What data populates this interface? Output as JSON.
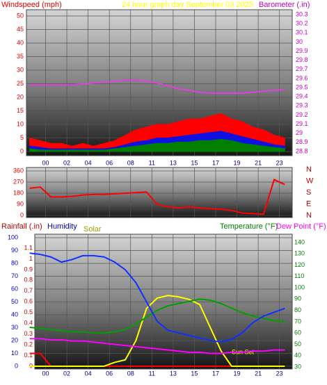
{
  "chart_data": [
    {
      "type": "area",
      "title": "24 hour graph day   September 03 2025",
      "xlim": [
        -1.8,
        23.2
      ],
      "xticks": [
        {
          "value": 0,
          "label": "00"
        },
        {
          "value": 2,
          "label": "02"
        },
        {
          "value": 4,
          "label": "04"
        },
        {
          "value": 6,
          "label": "06"
        },
        {
          "value": 8,
          "label": "08"
        },
        {
          "value": 10,
          "label": "11"
        },
        {
          "value": 12,
          "label": "13"
        },
        {
          "value": 14,
          "label": "15"
        },
        {
          "value": 16,
          "label": "17"
        },
        {
          "value": 18,
          "label": "19"
        },
        {
          "value": 20,
          "label": "21"
        },
        {
          "value": 22,
          "label": "23"
        }
      ],
      "grid": true,
      "axes": [
        {
          "label": "Windspeed (mph)",
          "side": "left",
          "color": "#e00000",
          "lim": [
            0,
            50
          ],
          "ticks": [
            0,
            5,
            10,
            15,
            20,
            25,
            30,
            35,
            40,
            45,
            50
          ]
        },
        {
          "label": "Barometer (.in)",
          "side": "right",
          "color": "#c000c0",
          "lim": [
            28.8,
            30.3
          ],
          "ticks": [
            28.8,
            28.9,
            29,
            29.1,
            29.2,
            29.3,
            29.4,
            29.5,
            29.6,
            29.7,
            29.8,
            29.9,
            30,
            30.1,
            30.2,
            30.3
          ]
        }
      ],
      "x": [
        -1.5,
        -0.5,
        0.5,
        1.5,
        2.5,
        3.5,
        4.5,
        5.5,
        6.5,
        7.5,
        8.5,
        9.5,
        10.5,
        11.5,
        12.5,
        13.5,
        14.5,
        15.5,
        16.5,
        17.5,
        18.5,
        19.5,
        20.5,
        21.5,
        22.5
      ],
      "series": [
        {
          "type": "area",
          "axis": 0,
          "color": "#ff0000",
          "values": [
            5,
            4,
            3,
            3,
            2,
            3,
            2,
            3,
            4,
            6,
            8,
            9,
            10,
            10,
            11,
            12,
            12,
            13,
            14,
            12,
            11,
            9,
            8,
            6,
            5
          ]
        },
        {
          "type": "area",
          "axis": 0,
          "color": "#1010e0",
          "values": [
            2,
            1.5,
            1,
            1,
            1,
            1,
            1,
            1,
            1.5,
            2.5,
            3.5,
            4,
            5,
            5,
            5.5,
            6,
            6.5,
            7,
            7.5,
            6.5,
            5.5,
            4.5,
            3.5,
            2.5,
            2
          ]
        },
        {
          "type": "area",
          "axis": 0,
          "color": "#008000",
          "values": [
            1,
            0.5,
            0.5,
            0.5,
            0.5,
            0.5,
            0.5,
            0.5,
            1,
            1.5,
            2,
            2.5,
            3,
            3,
            3.5,
            3.5,
            4,
            4,
            4.5,
            4,
            3,
            2.5,
            2,
            1.5,
            1
          ]
        },
        {
          "type": "line",
          "axis": 1,
          "color": "#e040e0",
          "values": [
            29.53,
            29.53,
            29.53,
            29.53,
            29.53,
            29.54,
            29.55,
            29.56,
            29.57,
            29.58,
            29.58,
            29.57,
            29.55,
            29.52,
            29.49,
            29.47,
            29.45,
            29.44,
            29.44,
            29.44,
            29.44,
            29.45,
            29.46,
            29.47,
            29.48
          ]
        }
      ]
    },
    {
      "type": "line",
      "xlim": [
        -1.8,
        23.2
      ],
      "xticks_grid": [
        0,
        2,
        4,
        6,
        8,
        10,
        12,
        14,
        16,
        18,
        20,
        22
      ],
      "grid": true,
      "axes": [
        {
          "side": "left",
          "color": "#e00000",
          "lim": [
            0,
            360
          ],
          "ticks": [
            0,
            90,
            180,
            270,
            360
          ]
        },
        {
          "side": "right",
          "color": "#c00000",
          "lim": [
            0,
            360
          ],
          "ticks": [
            {
              "value": 0,
              "label": "N"
            },
            {
              "value": 90,
              "label": "E"
            },
            {
              "value": 180,
              "label": "S"
            },
            {
              "value": 270,
              "label": "W"
            },
            {
              "value": 360,
              "label": "N"
            }
          ]
        }
      ],
      "x": [
        -1.5,
        -0.5,
        0.5,
        1.5,
        2.5,
        3.5,
        4.5,
        5.5,
        6.5,
        7.5,
        8.5,
        9.5,
        10.5,
        11.5,
        12.5,
        13.5,
        14.5,
        15.5,
        16.5,
        17.5,
        18.5,
        19.5,
        20.5,
        21.5,
        22.5
      ],
      "series": [
        {
          "type": "line",
          "axis": 0,
          "color": "#ff0000",
          "values": [
            220,
            230,
            150,
            150,
            155,
            165,
            170,
            170,
            175,
            180,
            185,
            190,
            90,
            70,
            60,
            70,
            60,
            55,
            50,
            40,
            20,
            15,
            10,
            290,
            250
          ]
        }
      ]
    },
    {
      "type": "line",
      "xlim": [
        -1.8,
        23.2
      ],
      "xticks": [
        {
          "value": 0,
          "label": "00"
        },
        {
          "value": 2,
          "label": "02"
        },
        {
          "value": 4,
          "label": "04"
        },
        {
          "value": 6,
          "label": "06"
        },
        {
          "value": 8,
          "label": "08"
        },
        {
          "value": 10,
          "label": "11"
        },
        {
          "value": 12,
          "label": "13"
        },
        {
          "value": 14,
          "label": "15"
        },
        {
          "value": 16,
          "label": "17"
        },
        {
          "value": 18,
          "label": "19"
        },
        {
          "value": 20,
          "label": "21"
        },
        {
          "value": 22,
          "label": "23"
        }
      ],
      "grid": true,
      "axes": [
        {
          "label": "Humidity",
          "side": "left",
          "color": "#0000c0",
          "lim": [
            0,
            100
          ],
          "ticks": [
            0,
            10,
            20,
            30,
            40,
            50,
            60,
            70,
            80,
            90,
            100
          ]
        },
        {
          "label": "Rainfall (.in)",
          "side": "left",
          "color": "#c00000",
          "lim": [
            0,
            1.1
          ],
          "ticks": [
            0,
            0.1,
            0.2,
            0.3,
            0.4,
            0.5,
            0.6,
            0.7,
            0.8,
            0.9,
            1,
            1.1
          ]
        },
        {
          "label": "Temperature (°F)",
          "side": "right",
          "color": "#008000",
          "lim": [
            30,
            140
          ],
          "ticks": [
            30,
            40,
            50,
            60,
            70,
            80,
            90,
            100,
            110,
            120,
            130,
            140
          ]
        }
      ],
      "solar_label": "Solar",
      "annotations": [
        {
          "text": "Sun Set"
        }
      ],
      "dew_label": "Dew Point (°F)",
      "x": [
        -1.5,
        -0.5,
        0.5,
        1.5,
        2.5,
        3.5,
        4.5,
        5.5,
        6.5,
        7.5,
        8.5,
        9.5,
        10.5,
        11.5,
        12.5,
        13.5,
        14.5,
        15.5,
        16.5,
        17.5,
        18.5,
        19.5,
        20.5,
        21.5,
        22.5
      ],
      "series": [
        {
          "type": "line",
          "axis": 1,
          "color": "#ff0000",
          "values": [
            0.12,
            0.12,
            0,
            0,
            0,
            0,
            0,
            0,
            0,
            0,
            0,
            0,
            0,
            0,
            0,
            0,
            0,
            0,
            0,
            0,
            0,
            0,
            0,
            0,
            0
          ]
        },
        {
          "type": "line",
          "axis": 0,
          "color": "#ffff00",
          "values": [
            0,
            0,
            0,
            0,
            0,
            0,
            0,
            0,
            3,
            5,
            20,
            45,
            53,
            55,
            54,
            52,
            48,
            30,
            12,
            0,
            0,
            0,
            0,
            0,
            0
          ]
        },
        {
          "type": "line",
          "axis": 2,
          "color": "#00a000",
          "values": [
            65,
            64,
            63,
            62,
            61,
            61,
            60,
            60,
            61,
            63,
            68,
            74,
            80,
            84,
            86,
            88,
            90,
            89,
            86,
            82,
            78,
            75,
            73,
            71,
            70
          ]
        },
        {
          "type": "line",
          "axis": 2,
          "color": "#ff00ff",
          "values": [
            55,
            55,
            54,
            54,
            53,
            53,
            52,
            51,
            50,
            49,
            48,
            47,
            46,
            45,
            44,
            43,
            43,
            42,
            42,
            43,
            43,
            44,
            44,
            45,
            45
          ]
        },
        {
          "type": "line",
          "axis": 0,
          "color": "#1030ff",
          "values": [
            88,
            87,
            85,
            81,
            83,
            86,
            86,
            85,
            81,
            75,
            65,
            50,
            35,
            28,
            26,
            24,
            22,
            20,
            19,
            21,
            26,
            34,
            39,
            42,
            45
          ]
        }
      ]
    }
  ]
}
